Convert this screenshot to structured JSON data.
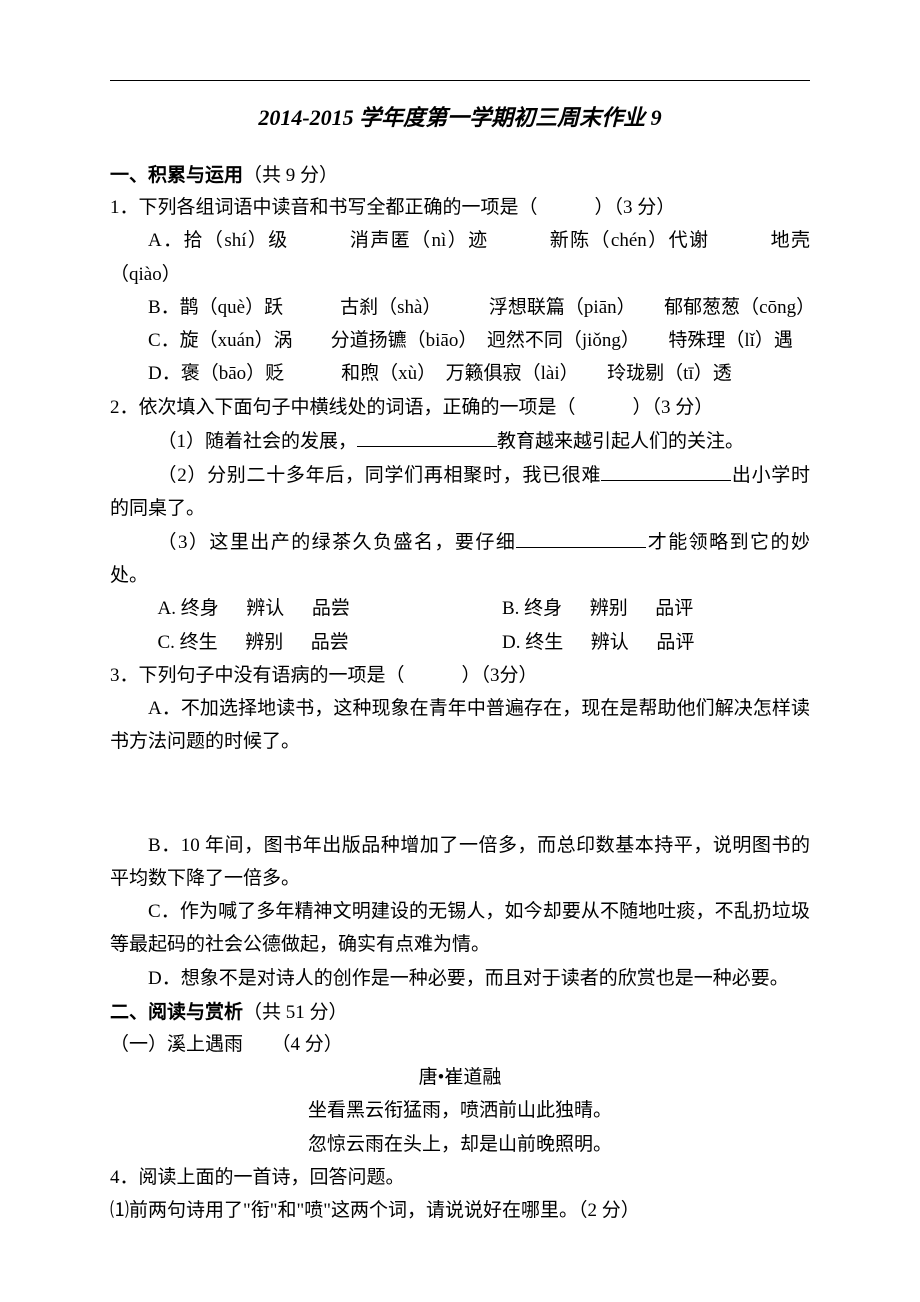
{
  "document": {
    "title": "2014-2015 学年度第一学期初三周末作业 9",
    "text_color": "#000000",
    "background_color": "#ffffff",
    "body_font_size": 19,
    "title_font_size": 22
  },
  "section1": {
    "header_label": "一、积累与运用",
    "header_points": "（共 9 分）"
  },
  "q1": {
    "stem": "1．下列各组词语中读音和书写全都正确的一项是（　　　）（3 分）",
    "opt_a": "A．拾（shí）级　　　消声匿（nì）迹　　　新陈（chén）代谢　　　地壳（qiào）",
    "opt_b": "B．鹊（què）跃　　　古刹（shà）　　　浮想联篇（piān）　　郁郁葱葱（cōng）",
    "opt_c": "C．旋（xuán）涡　　分道扬镳（biāo）　迥然不同（jiǒng）　　特殊理（lǐ）遇",
    "opt_d": "D．褒（bāo）贬　　　和煦（xù）　万籁俱寂（lài）　　玲珑剔（tī）透"
  },
  "q2": {
    "stem": "2．依次填入下面句子中横线处的词语，正确的一项是（　　　）（3 分）",
    "sub1_a": "（1）随着社会的发展，",
    "sub1_b": "教育越来越引起人们的关注。",
    "sub2_a": "（2）分别二十多年后，同学们再相聚时，我已很难",
    "sub2_b": "出小学时的同桌了。",
    "sub3_a": "（3）这里出产的绿茶久负盛名，要仔细",
    "sub3_b": "才能领略到它的妙处。",
    "row1_left_a": "A. 终身",
    "row1_left_b": "辨认",
    "row1_left_c": "品尝",
    "row1_right_a": "B. 终身",
    "row1_right_b": "辨别",
    "row1_right_c": "品评",
    "row2_left_a": "C. 终生",
    "row2_left_b": "辨别",
    "row2_left_c": "品尝",
    "row2_right_a": "D. 终生",
    "row2_right_b": "辨认",
    "row2_right_c": "品评"
  },
  "q3": {
    "stem": "3．下列句子中没有语病的一项是（　　　）（3分）",
    "opt_a": "A．不加选择地读书，这种现象在青年中普遍存在，现在是帮助他们解决怎样读书方法问题的时候了。",
    "opt_b": "B．10 年间，图书年出版品种增加了一倍多，而总印数基本持平，说明图书的平均数下降了一倍多。",
    "opt_c": "C．作为喊了多年精神文明建设的无锡人，如今却要从不随地吐痰，不乱扔垃圾等最起码的社会公德做起，确实有点难为情。",
    "opt_d": "D．想象不是对诗人的创作是一种必要，而且对于读者的欣赏也是一种必要。"
  },
  "section2": {
    "header_label": "二、阅读与赏析",
    "header_points": "（共 51 分）"
  },
  "poem": {
    "sub_title": "（一）溪上遇雨　　（4 分）",
    "author": "唐•崔道融",
    "line1": "坐看黑云衔猛雨，喷洒前山此独晴。",
    "line2": "忽惊云雨在头上，却是山前晚照明。"
  },
  "q4": {
    "stem": "4．阅读上面的一首诗，回答问题。",
    "sub1": "⑴前两句诗用了\"衔\"和\"喷\"这两个词，请说说好在哪里。（2 分）"
  }
}
